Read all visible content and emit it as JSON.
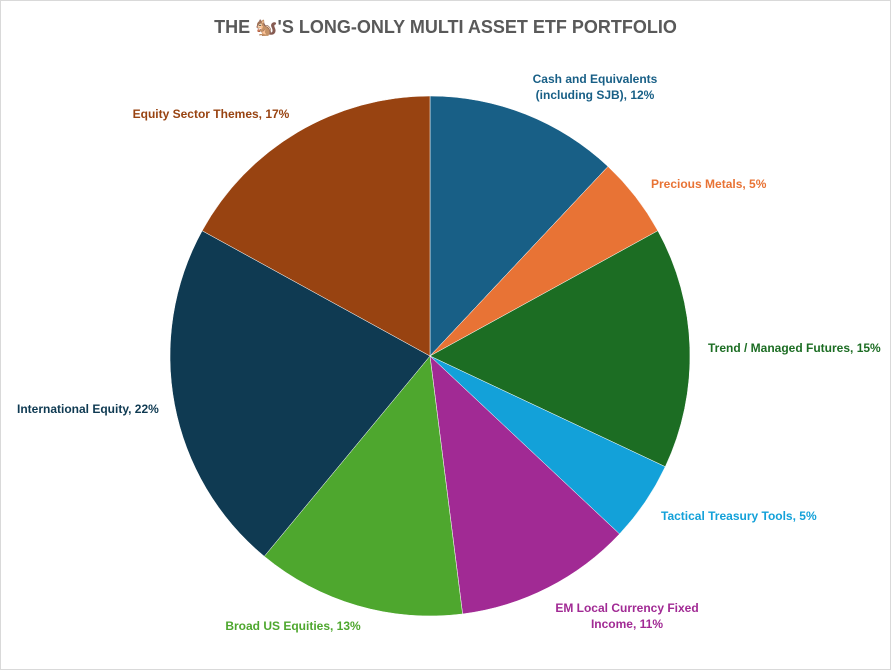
{
  "chart_data": {
    "type": "pie",
    "title": "THE 🐿️'S LONG-ONLY MULTI ASSET ETF PORTFOLIO",
    "start_angle_deg": 0,
    "direction": "clockwise",
    "slices": [
      {
        "label": "Cash and Equivalents (including SJB), 12%",
        "lines": [
          "Cash and Equivalents",
          "(including SJB), 12%"
        ],
        "category": "Cash and Equivalents (including SJB)",
        "value": 12,
        "color": "#185f86"
      },
      {
        "label": "Precious Metals, 5%",
        "lines": [
          "Precious Metals, 5%"
        ],
        "category": "Precious Metals",
        "value": 5,
        "color": "#e87335"
      },
      {
        "label": "Trend / Managed Futures, 15%",
        "lines": [
          "Trend / Managed Futures, 15%"
        ],
        "category": "Trend / Managed Futures",
        "value": 15,
        "color": "#1c6d23"
      },
      {
        "label": "Tactical Treasury Tools, 5%",
        "lines": [
          "Tactical Treasury Tools, 5%"
        ],
        "category": "Tactical Treasury Tools",
        "value": 5,
        "color": "#13a1d9"
      },
      {
        "label": "EM Local Currency Fixed Income, 11%",
        "lines": [
          "EM Local Currency Fixed",
          "Income, 11%"
        ],
        "category": "EM Local Currency Fixed Income",
        "value": 11,
        "color": "#a12a94"
      },
      {
        "label": "Broad US Equities, 13%",
        "lines": [
          "Broad US Equities, 13%"
        ],
        "category": "Broad US Equities",
        "value": 13,
        "color": "#4ea72e"
      },
      {
        "label": "International Equity, 22%",
        "lines": [
          "International Equity, 22%"
        ],
        "category": "International Equity",
        "value": 22,
        "color": "#0f3a52"
      },
      {
        "label": "Equity Sector Themes, 17%",
        "lines": [
          "Equity Sector Themes, 17%"
        ],
        "category": "Equity Sector Themes",
        "value": 17,
        "color": "#984311"
      }
    ],
    "legend": "none",
    "data_labels": "outside"
  }
}
